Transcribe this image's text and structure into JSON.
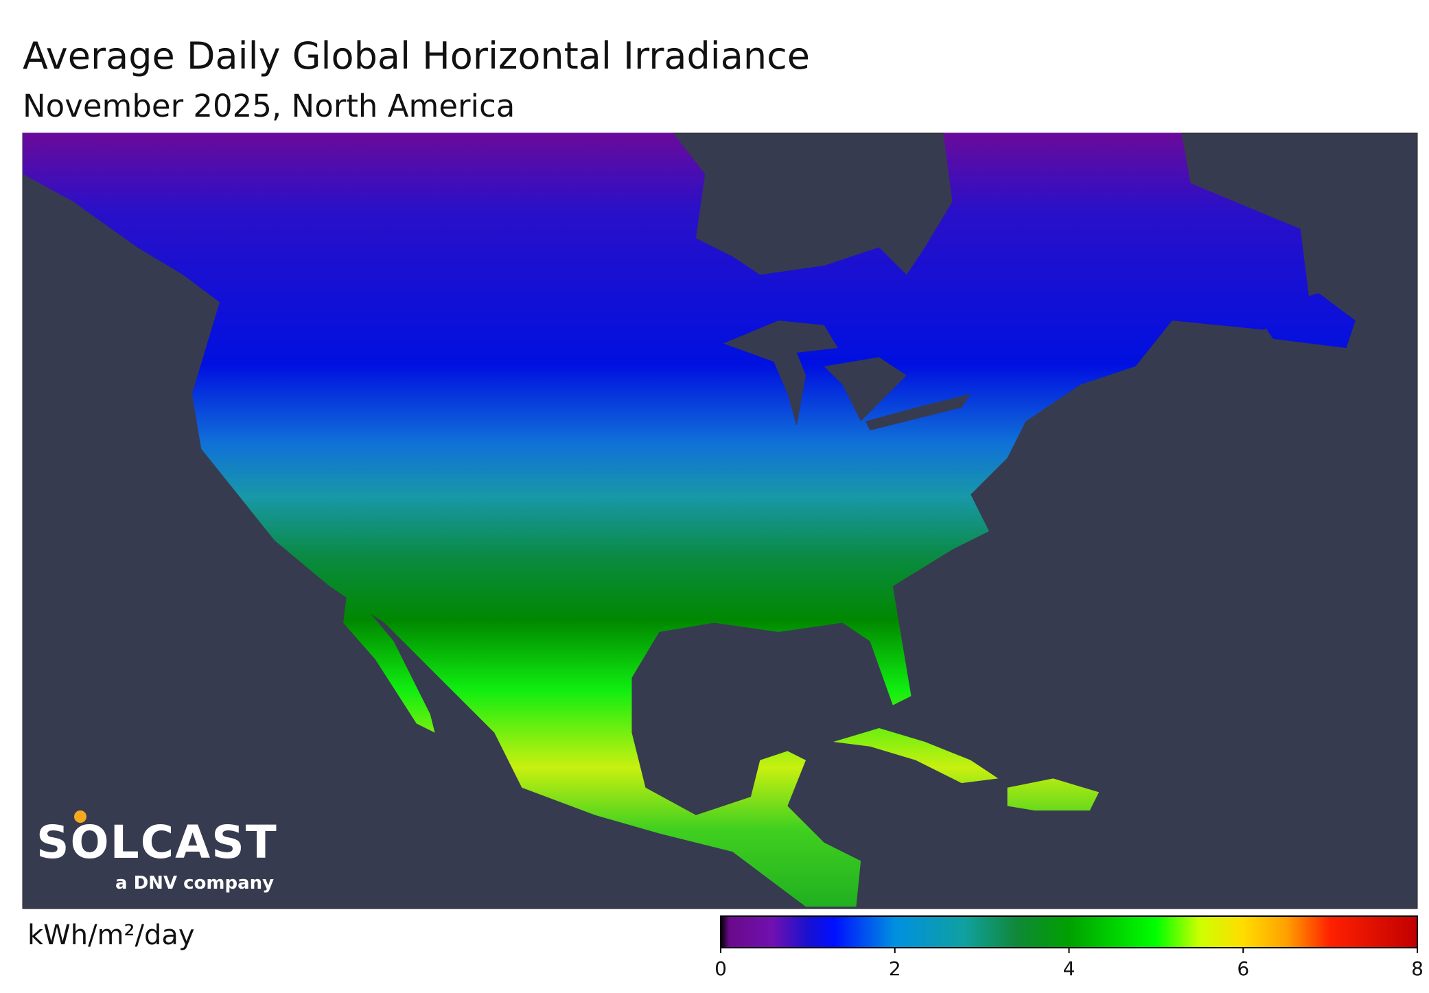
{
  "title": "Average Daily Global Horizontal Irradiance",
  "subtitle": "November 2025, North America",
  "logo": {
    "name": "SOLCAST",
    "tagline": "a DNV company"
  },
  "colorbar": {
    "label": "kWh/m²/day",
    "range": [
      0,
      8
    ],
    "ticks": [
      0,
      2,
      4,
      6,
      8
    ],
    "stops": [
      {
        "value": 0,
        "color": "#000000"
      },
      {
        "value": 0.1,
        "color": "#6a0a8a"
      },
      {
        "value": 0.6,
        "color": "#7010b0"
      },
      {
        "value": 1.0,
        "color": "#1a10d0"
      },
      {
        "value": 1.3,
        "color": "#0010ff"
      },
      {
        "value": 2.0,
        "color": "#0090e0"
      },
      {
        "value": 2.8,
        "color": "#10a0a0"
      },
      {
        "value": 3.4,
        "color": "#108838"
      },
      {
        "value": 4.0,
        "color": "#00a000"
      },
      {
        "value": 5.0,
        "color": "#00ff00"
      },
      {
        "value": 5.5,
        "color": "#ccff00"
      },
      {
        "value": 6.0,
        "color": "#ffdd00"
      },
      {
        "value": 6.5,
        "color": "#ffa000"
      },
      {
        "value": 7.0,
        "color": "#ff2000"
      },
      {
        "value": 8.0,
        "color": "#c00000"
      }
    ]
  }
}
